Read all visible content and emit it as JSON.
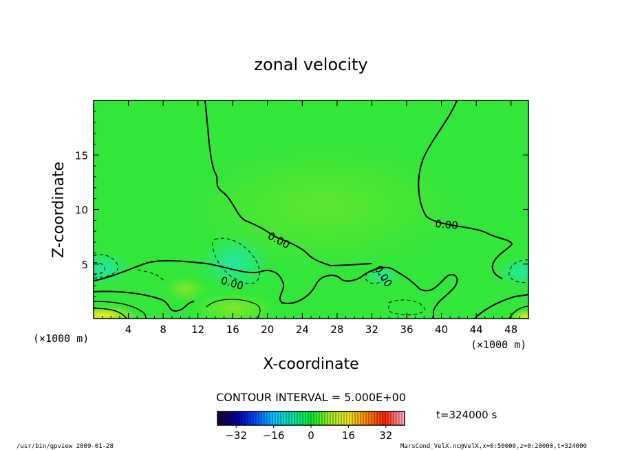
{
  "chart_data": {
    "type": "heatmap",
    "title": "zonal velocity",
    "xlabel": "X-coordinate",
    "ylabel": "Z-coordinate",
    "x_unit_label": "(×1000 m)",
    "y_unit_label": "(×1000 m)",
    "xlim": [
      0,
      50
    ],
    "ylim": [
      0,
      20
    ],
    "x_ticks": [
      "4",
      "8",
      "12",
      "16",
      "20",
      "24",
      "28",
      "32",
      "36",
      "40",
      "44",
      "48"
    ],
    "y_ticks": [
      "5",
      "10",
      "15"
    ],
    "contour_interval_text": "CONTOUR INTERVAL = 5.000E+00",
    "contour_labels": [
      "0.00",
      "0.00",
      "0.00",
      "0.00"
    ],
    "colorbar": {
      "min": -40,
      "max": 40,
      "tick_labels": [
        "−32",
        "−16",
        "0",
        "16",
        "32"
      ],
      "colors": [
        "#1a0033",
        "#0000aa",
        "#0050ff",
        "#00c8ff",
        "#00e8a0",
        "#00ee33",
        "#a0ee20",
        "#f0ea20",
        "#ff8a00",
        "#ff2200",
        "#ffb0c8"
      ]
    },
    "time_label": "t=324000 s",
    "grid": false,
    "legend": "colorbar bottom-center",
    "colors": {
      "field_base": "#33e63a",
      "contour": "#000000"
    }
  },
  "footer": {
    "left": "/usr/bin/gpview  2009-01-28",
    "right": "MarsCond_VelX.nc@VelX,x=0:50000,z=0:20000,t=324000"
  }
}
